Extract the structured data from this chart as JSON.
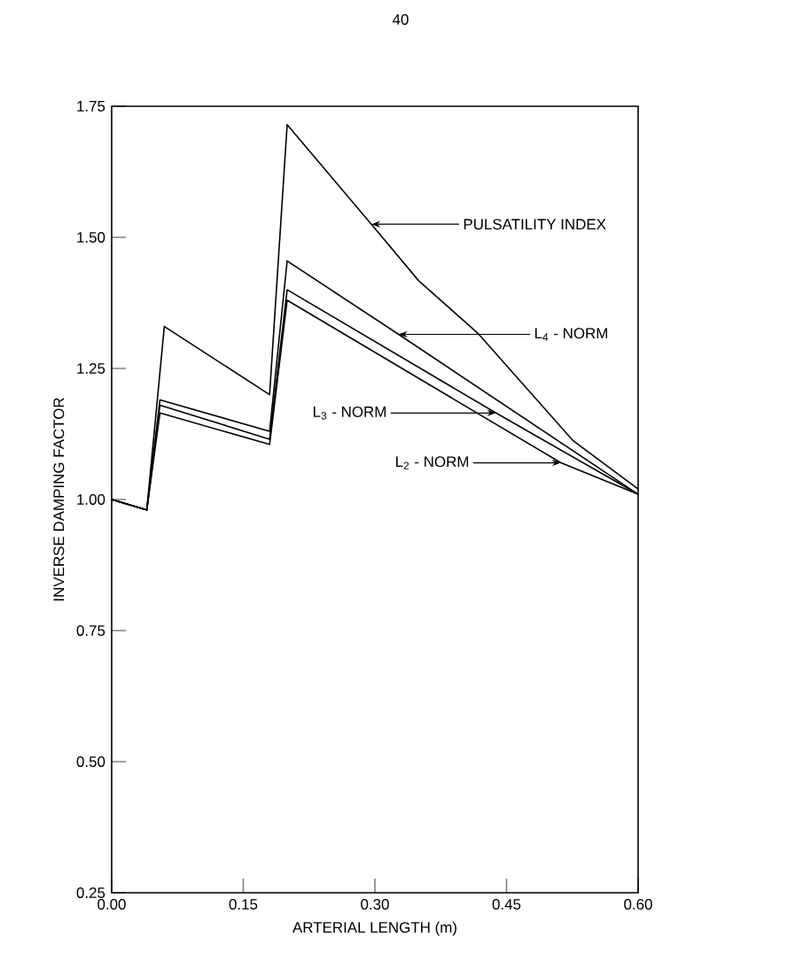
{
  "chart_data": {
    "type": "line",
    "xlabel": "ARTERIAL LENGTH (m)",
    "ylabel": "INVERSE DAMPING FACTOR",
    "xlim": [
      0,
      0.6
    ],
    "ylim": [
      0.25,
      1.75
    ],
    "xticks": [
      {
        "value": 0,
        "label": "0.00"
      },
      {
        "value": 0.15,
        "label": "0.15"
      },
      {
        "value": 0.3,
        "label": "0.30"
      },
      {
        "value": 0.45,
        "label": "0.45"
      },
      {
        "value": 0.6,
        "label": "0.60"
      }
    ],
    "yticks": [
      {
        "value": 0.25,
        "label": "0.25"
      },
      {
        "value": 0.5,
        "label": "0.50"
      },
      {
        "value": 0.75,
        "label": "0.75"
      },
      {
        "value": 1.0,
        "label": "1.00"
      },
      {
        "value": 1.25,
        "label": "1.25"
      },
      {
        "value": 1.5,
        "label": "1.50"
      },
      {
        "value": 1.75,
        "label": "1.75"
      }
    ],
    "grid": false,
    "marker": "none",
    "line_style": "solid",
    "series": [
      {
        "color": "#000000",
        "x": [
          0,
          0.04,
          0.06,
          0.18,
          0.2,
          0.296,
          0.35,
          0.418,
          0.526,
          0.6
        ],
        "values": [
          1.0,
          0.98,
          1.33,
          1.2,
          1.715,
          1.525,
          1.417,
          1.316,
          1.112,
          1.02
        ]
      },
      {
        "color": "#000000",
        "x": [
          0,
          0.04,
          0.055,
          0.18,
          0.2,
          0.327,
          0.6
        ],
        "values": [
          1.0,
          0.98,
          1.19,
          1.13,
          1.455,
          1.315,
          1.01
        ]
      },
      {
        "color": "#000000",
        "x": [
          0,
          0.04,
          0.055,
          0.18,
          0.2,
          0.438,
          0.6
        ],
        "values": [
          1.0,
          0.98,
          1.18,
          1.115,
          1.4,
          1.165,
          1.01
        ]
      },
      {
        "color": "#000000",
        "x": [
          0,
          0.04,
          0.055,
          0.18,
          0.2,
          0.512,
          0.6
        ],
        "values": [
          1.0,
          0.98,
          1.165,
          1.105,
          1.38,
          1.07,
          1.01
        ]
      }
    ],
    "annotations": [
      "40",
      {
        "text": "PULSATILITY INDEX",
        "x": 0.296,
        "y": 1.525
      },
      {
        "text": "L$_{4}$ - NORM",
        "x": 0.327,
        "y": 1.315
      },
      {
        "text": "L$_{3}$ - NORM",
        "x": 0.438,
        "y": 1.165
      },
      {
        "text": "L$_{2}$ - NORM",
        "x": 0.512,
        "y": 1.07
      }
    ]
  }
}
